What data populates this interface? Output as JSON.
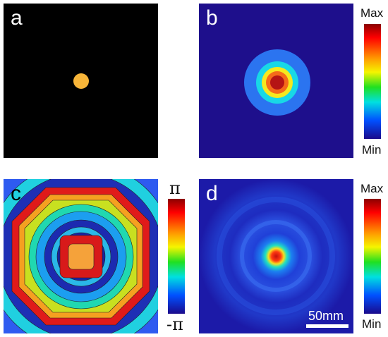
{
  "panels": {
    "a": {
      "label": "a"
    },
    "b": {
      "label": "b"
    },
    "c": {
      "label": "c"
    },
    "d": {
      "label": "d"
    }
  },
  "colorbars": {
    "b": {
      "max": "Max",
      "min": "Min"
    },
    "c": {
      "max": "π",
      "min": "-π"
    },
    "d": {
      "max": "Max",
      "min": "Min"
    }
  },
  "scale_bar": {
    "text": "50mm"
  },
  "colors": {
    "background_a": "#000000",
    "spot": "#f7b539",
    "jet_dark_blue": "#1e0f8c",
    "jet_red": "#c41414"
  }
}
